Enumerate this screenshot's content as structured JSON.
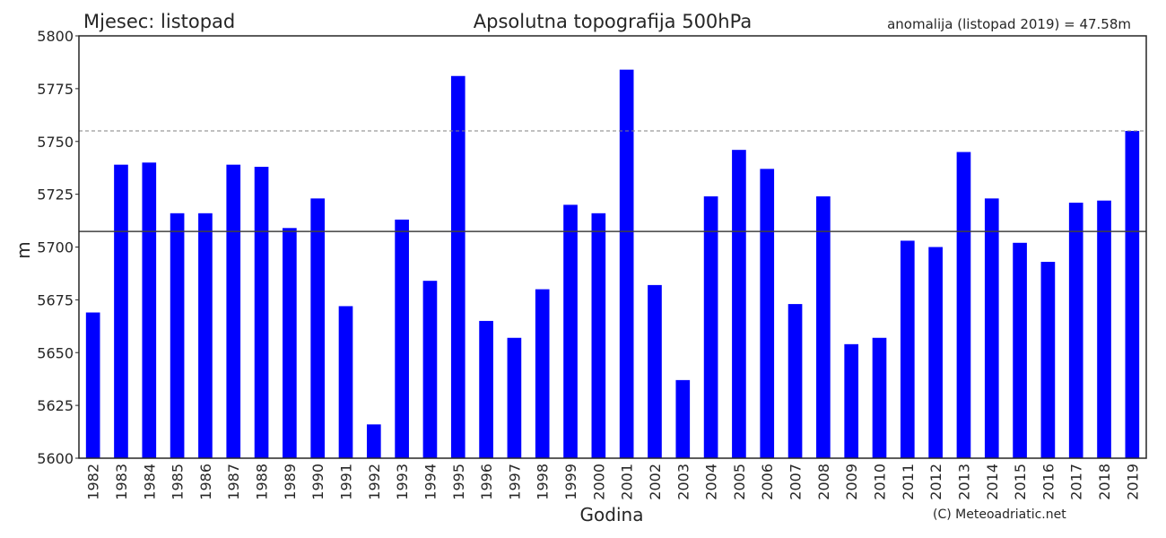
{
  "header": {
    "month_label": "Mjesec: listopad",
    "title": "Apsolutna topografija 500hPa",
    "anomaly_label": "anomalija (listopad 2019) = 47.58m"
  },
  "footer": {
    "copyright": "(C) Meteoadriatic.net"
  },
  "chart_data": {
    "type": "bar",
    "title": "Apsolutna topografija 500hPa",
    "xlabel": "Godina",
    "ylabel": "m",
    "ylim": [
      5600,
      5800
    ],
    "yticks": [
      5600,
      5625,
      5650,
      5675,
      5700,
      5725,
      5750,
      5775,
      5800
    ],
    "bar_color": "#0000ff",
    "grid": false,
    "categories": [
      "1982",
      "1983",
      "1984",
      "1985",
      "1986",
      "1987",
      "1988",
      "1989",
      "1990",
      "1991",
      "1992",
      "1993",
      "1994",
      "1995",
      "1996",
      "1997",
      "1998",
      "1999",
      "2000",
      "2001",
      "2002",
      "2003",
      "2004",
      "2005",
      "2006",
      "2007",
      "2008",
      "2009",
      "2010",
      "2011",
      "2012",
      "2013",
      "2014",
      "2015",
      "2016",
      "2017",
      "2018",
      "2019"
    ],
    "values": [
      5669,
      5739,
      5740,
      5716,
      5716,
      5739,
      5738,
      5709,
      5723,
      5672,
      5616,
      5713,
      5684,
      5781,
      5665,
      5657,
      5680,
      5720,
      5716,
      5784,
      5682,
      5637,
      5724,
      5746,
      5737,
      5673,
      5724,
      5654,
      5657,
      5703,
      5700,
      5745,
      5723,
      5702,
      5693,
      5721,
      5722,
      5755
    ],
    "reference_lines": [
      {
        "value": 5707.4,
        "style": "solid",
        "color": "#404040"
      },
      {
        "value": 5755,
        "style": "dashed",
        "color": "#808080"
      }
    ]
  }
}
